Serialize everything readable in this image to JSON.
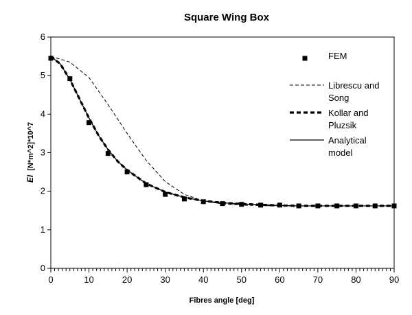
{
  "chart_data": {
    "type": "line",
    "title": "Square Wing Box",
    "xlabel": "Fibres angle [deg]",
    "ylabel_symbol": "EI",
    "ylabel_units": "[N*m^2]*10^7",
    "xlim": [
      0,
      90
    ],
    "ylim": [
      0,
      6
    ],
    "xticks": [
      0,
      10,
      20,
      30,
      40,
      50,
      60,
      70,
      80,
      90
    ],
    "yticks": [
      0,
      1,
      2,
      3,
      4,
      5,
      6
    ],
    "grid": false,
    "legend_position": "right",
    "series": [
      {
        "name": "FEM",
        "style": "square-markers",
        "x": [
          0,
          5,
          10,
          15,
          20,
          25,
          30,
          35,
          40,
          45,
          50,
          55,
          60,
          65,
          70,
          75,
          80,
          85,
          90
        ],
        "y": [
          5.45,
          4.92,
          3.78,
          2.98,
          2.5,
          2.17,
          1.92,
          1.8,
          1.73,
          1.68,
          1.66,
          1.64,
          1.64,
          1.62,
          1.62,
          1.62,
          1.62,
          1.62,
          1.62
        ]
      },
      {
        "name": "Librescu and Song",
        "legend_lines": [
          "Librescu and",
          "Song"
        ],
        "style": "thin-dashed",
        "x": [
          0,
          5,
          10,
          15,
          20,
          25,
          30,
          35,
          40,
          45,
          50,
          55,
          60,
          65,
          70,
          75,
          80,
          85,
          90
        ],
        "y": [
          5.5,
          5.35,
          4.95,
          4.25,
          3.5,
          2.8,
          2.25,
          1.92,
          1.75,
          1.67,
          1.64,
          1.63,
          1.62,
          1.62,
          1.62,
          1.62,
          1.62,
          1.62,
          1.62
        ]
      },
      {
        "name": "Kollar and Pluzsik",
        "legend_lines": [
          "Kollar and",
          "Pluzsik"
        ],
        "style": "thick-dashed",
        "x": [
          0,
          2.5,
          5,
          7.5,
          10,
          12.5,
          15,
          17.5,
          20,
          25,
          30,
          35,
          40,
          45,
          50,
          55,
          60,
          65,
          70,
          75,
          80,
          85,
          90
        ],
        "y": [
          5.5,
          5.3,
          4.9,
          4.4,
          3.9,
          3.45,
          3.08,
          2.78,
          2.55,
          2.2,
          1.98,
          1.84,
          1.75,
          1.7,
          1.67,
          1.65,
          1.63,
          1.62,
          1.62,
          1.62,
          1.62,
          1.62,
          1.62
        ]
      },
      {
        "name": "Analytical model",
        "legend_lines": [
          "Analytical",
          "model"
        ],
        "style": "solid",
        "x": [
          0,
          2.5,
          5,
          7.5,
          10,
          12.5,
          15,
          17.5,
          20,
          25,
          30,
          35,
          40,
          45,
          50,
          55,
          60,
          65,
          70,
          75,
          80,
          85,
          90
        ],
        "y": [
          5.5,
          5.3,
          4.9,
          4.4,
          3.9,
          3.45,
          3.08,
          2.78,
          2.55,
          2.2,
          1.98,
          1.84,
          1.75,
          1.7,
          1.67,
          1.65,
          1.63,
          1.62,
          1.62,
          1.62,
          1.62,
          1.62,
          1.62
        ]
      }
    ]
  }
}
